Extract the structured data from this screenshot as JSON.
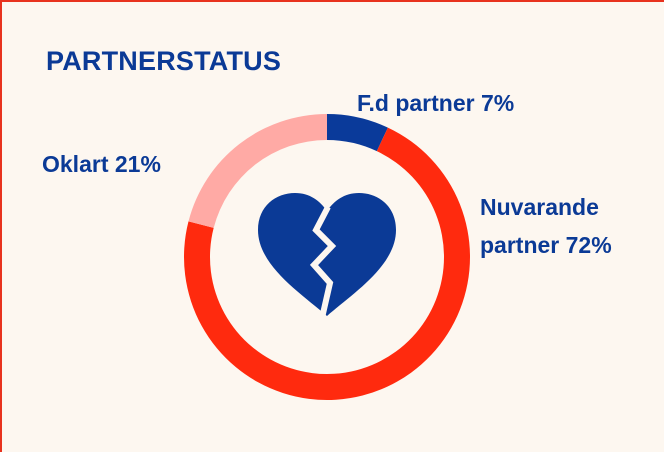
{
  "chart_data": {
    "type": "pie",
    "donut": true,
    "title": "PARTNERSTATUS",
    "categories": [
      "F.d partner",
      "Nuvarande partner",
      "Oklart"
    ],
    "values": [
      7,
      72,
      21
    ],
    "value_labels": [
      "7%",
      "72%",
      "21%"
    ],
    "colors": [
      "#0a3a9a",
      "#ff2a0e",
      "#ffaaa5"
    ]
  }
}
